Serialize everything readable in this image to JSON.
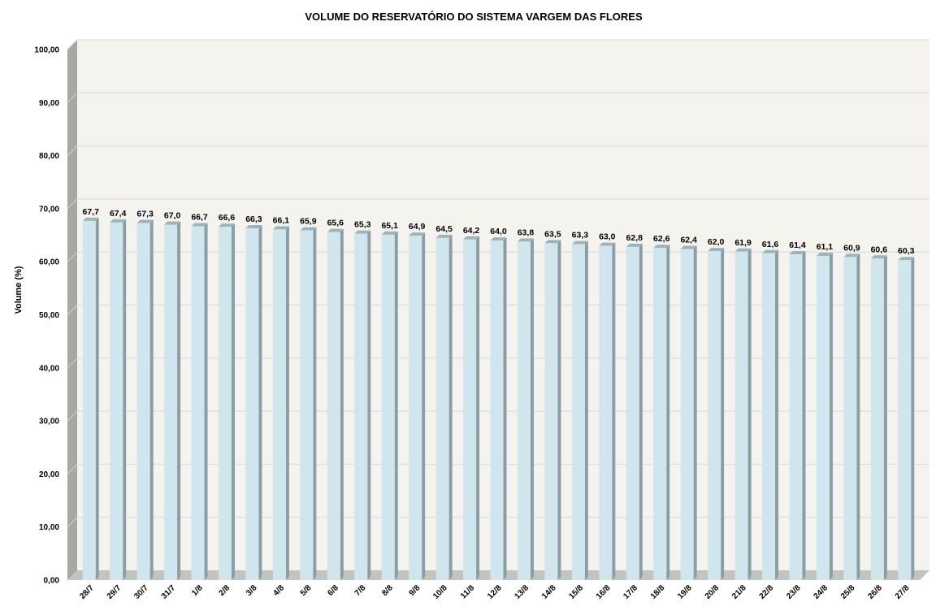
{
  "chart_data": {
    "type": "bar",
    "title": "VOLUME DO RESERVATÓRIO DO SISTEMA VARGEM DAS FLORES",
    "xlabel": "",
    "ylabel": "Volume (%)",
    "ylim": [
      0,
      100
    ],
    "yticks": [
      "0,00",
      "10,00",
      "20,00",
      "30,00",
      "40,00",
      "50,00",
      "60,00",
      "70,00",
      "80,00",
      "90,00",
      "100,00"
    ],
    "grid": true,
    "legend": "none",
    "categories": [
      "28/7",
      "29/7",
      "30/7",
      "31/7",
      "1/8",
      "2/8",
      "3/8",
      "4/8",
      "5/8",
      "6/8",
      "7/8",
      "8/8",
      "9/8",
      "10/8",
      "11/8",
      "12/8",
      "13/8",
      "14/8",
      "15/8",
      "16/8",
      "17/8",
      "18/8",
      "19/8",
      "20/8",
      "21/8",
      "22/8",
      "23/8",
      "24/8",
      "25/8",
      "26/8",
      "27/8"
    ],
    "values": [
      67.7,
      67.4,
      67.3,
      67.0,
      66.7,
      66.6,
      66.3,
      66.1,
      65.9,
      65.6,
      65.3,
      65.1,
      64.9,
      64.5,
      64.2,
      64.0,
      63.8,
      63.5,
      63.3,
      63.0,
      62.8,
      62.6,
      62.4,
      62.0,
      61.9,
      61.6,
      61.4,
      61.1,
      60.9,
      60.6,
      60.3
    ],
    "data_labels": [
      "67,7",
      "67,4",
      "67,3",
      "67,0",
      "66,7",
      "66,6",
      "66,3",
      "66,1",
      "65,9",
      "65,6",
      "65,3",
      "65,1",
      "64,9",
      "64,5",
      "64,2",
      "64,0",
      "63,8",
      "63,5",
      "63,3",
      "63,0",
      "62,8",
      "62,6",
      "62,4",
      "62,0",
      "61,9",
      "61,6",
      "61,4",
      "61,1",
      "60,9",
      "60,6",
      "60,3"
    ],
    "colors": {
      "bar_front": "#cfe6ee",
      "bar_side": "#8a9ea3",
      "bar_top": "#e6f2f6",
      "plot_bg": "#f4f3ee",
      "left_wall": "#a6a9a3",
      "floor": "#c2c4bf",
      "grid": "#d8d8d4"
    }
  }
}
